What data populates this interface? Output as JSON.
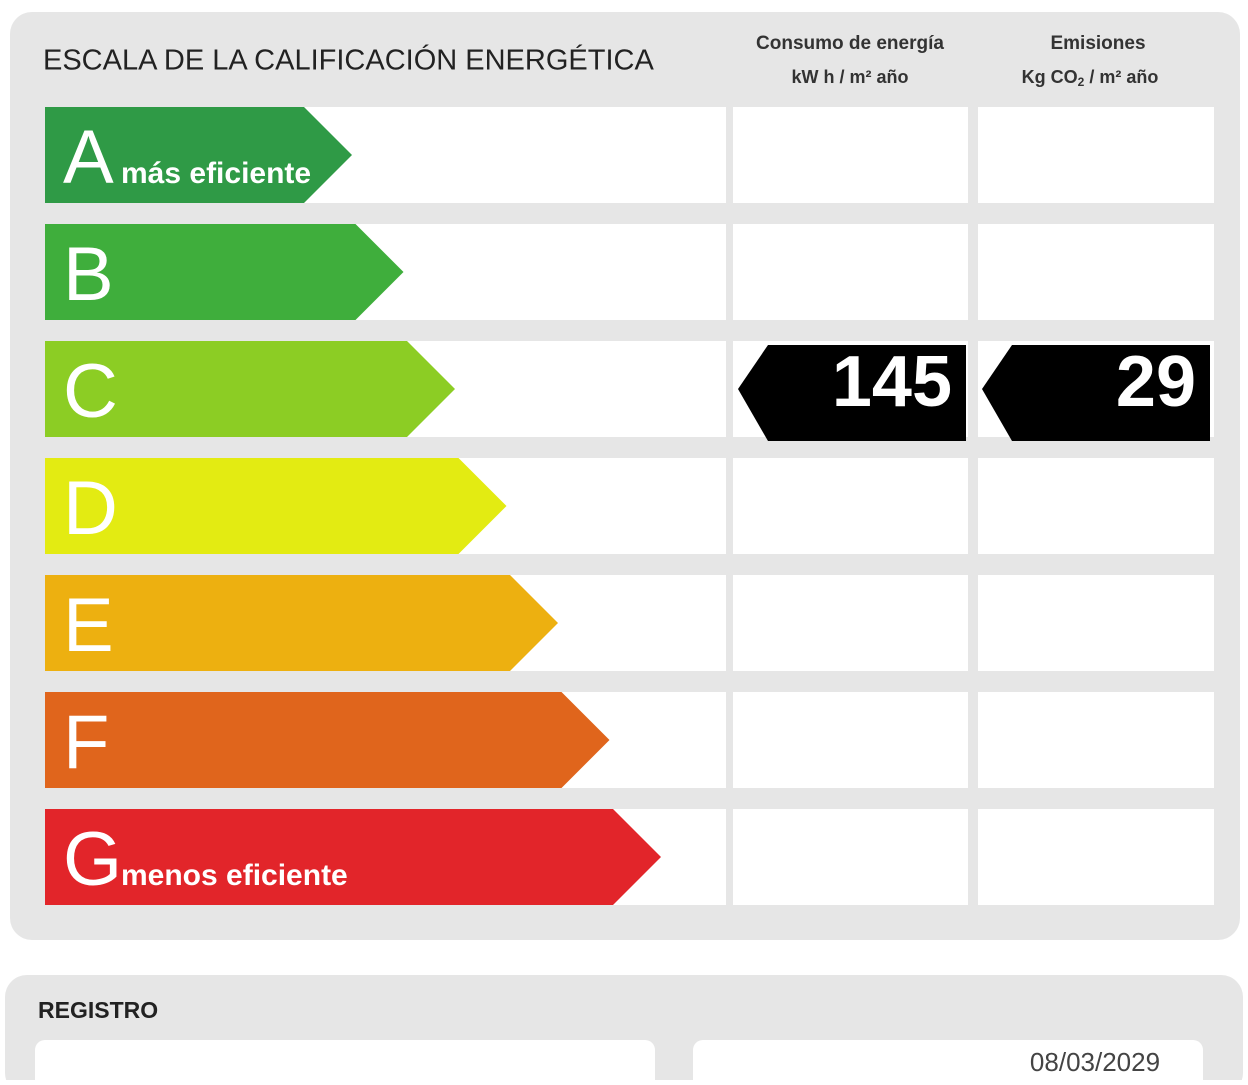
{
  "header": {
    "title": "ESCALA DE LA CALIFICACIÓN ENERGÉTICA",
    "energy": {
      "line1": "Consumo de energía",
      "line2": "kW h / m² año"
    },
    "emissions": {
      "line1": "Emisiones",
      "units_before": "Kg CO",
      "units_sub": "2",
      "units_after": " / m² año"
    }
  },
  "rows": [
    {
      "letter": "A",
      "note": "más eficiente",
      "color": "#2f9a46"
    },
    {
      "letter": "B",
      "color": "#3fae3c"
    },
    {
      "letter": "C",
      "color": "#8ccd24",
      "energy": "145",
      "emissions": "29"
    },
    {
      "letter": "D",
      "color": "#e3eb12"
    },
    {
      "letter": "E",
      "color": "#edb010"
    },
    {
      "letter": "F",
      "color": "#e0651c"
    },
    {
      "letter": "G",
      "note": "menos eficiente",
      "color": "#e2252a"
    }
  ],
  "registro": {
    "label": "REGISTRO",
    "date": "08/03/2029"
  }
}
